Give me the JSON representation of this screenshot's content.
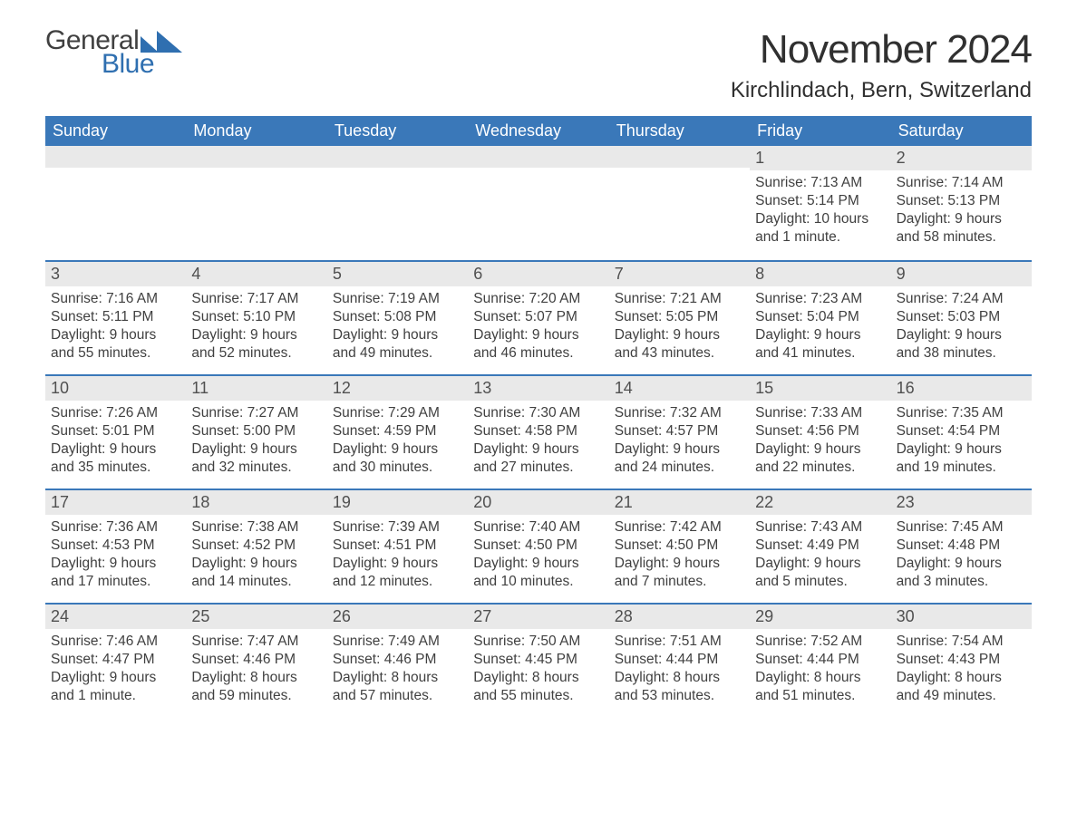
{
  "brand": {
    "word1": "General",
    "word2": "Blue",
    "brand_color": "#2f6fb0"
  },
  "title": "November 2024",
  "location": "Kirchlindach, Bern, Switzerland",
  "colors": {
    "header_bg": "#3a78b9",
    "header_text": "#ffffff",
    "daynum_bg": "#e9e9e9",
    "row_divider": "#3a78b9",
    "body_text": "#404040",
    "page_bg": "#ffffff"
  },
  "typography": {
    "title_fontsize_pt": 33,
    "location_fontsize_pt": 18,
    "dayhead_fontsize_pt": 14,
    "daynum_fontsize_pt": 14,
    "body_fontsize_pt": 12
  },
  "layout": {
    "columns": 7,
    "rows": 5,
    "leading_blanks": 5
  },
  "weekdays": [
    "Sunday",
    "Monday",
    "Tuesday",
    "Wednesday",
    "Thursday",
    "Friday",
    "Saturday"
  ],
  "labels": {
    "sunrise": "Sunrise:",
    "sunset": "Sunset:",
    "daylight": "Daylight:"
  },
  "days": [
    {
      "n": 1,
      "sunrise": "7:13 AM",
      "sunset": "5:14 PM",
      "daylight": "10 hours and 1 minute."
    },
    {
      "n": 2,
      "sunrise": "7:14 AM",
      "sunset": "5:13 PM",
      "daylight": "9 hours and 58 minutes."
    },
    {
      "n": 3,
      "sunrise": "7:16 AM",
      "sunset": "5:11 PM",
      "daylight": "9 hours and 55 minutes."
    },
    {
      "n": 4,
      "sunrise": "7:17 AM",
      "sunset": "5:10 PM",
      "daylight": "9 hours and 52 minutes."
    },
    {
      "n": 5,
      "sunrise": "7:19 AM",
      "sunset": "5:08 PM",
      "daylight": "9 hours and 49 minutes."
    },
    {
      "n": 6,
      "sunrise": "7:20 AM",
      "sunset": "5:07 PM",
      "daylight": "9 hours and 46 minutes."
    },
    {
      "n": 7,
      "sunrise": "7:21 AM",
      "sunset": "5:05 PM",
      "daylight": "9 hours and 43 minutes."
    },
    {
      "n": 8,
      "sunrise": "7:23 AM",
      "sunset": "5:04 PM",
      "daylight": "9 hours and 41 minutes."
    },
    {
      "n": 9,
      "sunrise": "7:24 AM",
      "sunset": "5:03 PM",
      "daylight": "9 hours and 38 minutes."
    },
    {
      "n": 10,
      "sunrise": "7:26 AM",
      "sunset": "5:01 PM",
      "daylight": "9 hours and 35 minutes."
    },
    {
      "n": 11,
      "sunrise": "7:27 AM",
      "sunset": "5:00 PM",
      "daylight": "9 hours and 32 minutes."
    },
    {
      "n": 12,
      "sunrise": "7:29 AM",
      "sunset": "4:59 PM",
      "daylight": "9 hours and 30 minutes."
    },
    {
      "n": 13,
      "sunrise": "7:30 AM",
      "sunset": "4:58 PM",
      "daylight": "9 hours and 27 minutes."
    },
    {
      "n": 14,
      "sunrise": "7:32 AM",
      "sunset": "4:57 PM",
      "daylight": "9 hours and 24 minutes."
    },
    {
      "n": 15,
      "sunrise": "7:33 AM",
      "sunset": "4:56 PM",
      "daylight": "9 hours and 22 minutes."
    },
    {
      "n": 16,
      "sunrise": "7:35 AM",
      "sunset": "4:54 PM",
      "daylight": "9 hours and 19 minutes."
    },
    {
      "n": 17,
      "sunrise": "7:36 AM",
      "sunset": "4:53 PM",
      "daylight": "9 hours and 17 minutes."
    },
    {
      "n": 18,
      "sunrise": "7:38 AM",
      "sunset": "4:52 PM",
      "daylight": "9 hours and 14 minutes."
    },
    {
      "n": 19,
      "sunrise": "7:39 AM",
      "sunset": "4:51 PM",
      "daylight": "9 hours and 12 minutes."
    },
    {
      "n": 20,
      "sunrise": "7:40 AM",
      "sunset": "4:50 PM",
      "daylight": "9 hours and 10 minutes."
    },
    {
      "n": 21,
      "sunrise": "7:42 AM",
      "sunset": "4:50 PM",
      "daylight": "9 hours and 7 minutes."
    },
    {
      "n": 22,
      "sunrise": "7:43 AM",
      "sunset": "4:49 PM",
      "daylight": "9 hours and 5 minutes."
    },
    {
      "n": 23,
      "sunrise": "7:45 AM",
      "sunset": "4:48 PM",
      "daylight": "9 hours and 3 minutes."
    },
    {
      "n": 24,
      "sunrise": "7:46 AM",
      "sunset": "4:47 PM",
      "daylight": "9 hours and 1 minute."
    },
    {
      "n": 25,
      "sunrise": "7:47 AM",
      "sunset": "4:46 PM",
      "daylight": "8 hours and 59 minutes."
    },
    {
      "n": 26,
      "sunrise": "7:49 AM",
      "sunset": "4:46 PM",
      "daylight": "8 hours and 57 minutes."
    },
    {
      "n": 27,
      "sunrise": "7:50 AM",
      "sunset": "4:45 PM",
      "daylight": "8 hours and 55 minutes."
    },
    {
      "n": 28,
      "sunrise": "7:51 AM",
      "sunset": "4:44 PM",
      "daylight": "8 hours and 53 minutes."
    },
    {
      "n": 29,
      "sunrise": "7:52 AM",
      "sunset": "4:44 PM",
      "daylight": "8 hours and 51 minutes."
    },
    {
      "n": 30,
      "sunrise": "7:54 AM",
      "sunset": "4:43 PM",
      "daylight": "8 hours and 49 minutes."
    }
  ]
}
